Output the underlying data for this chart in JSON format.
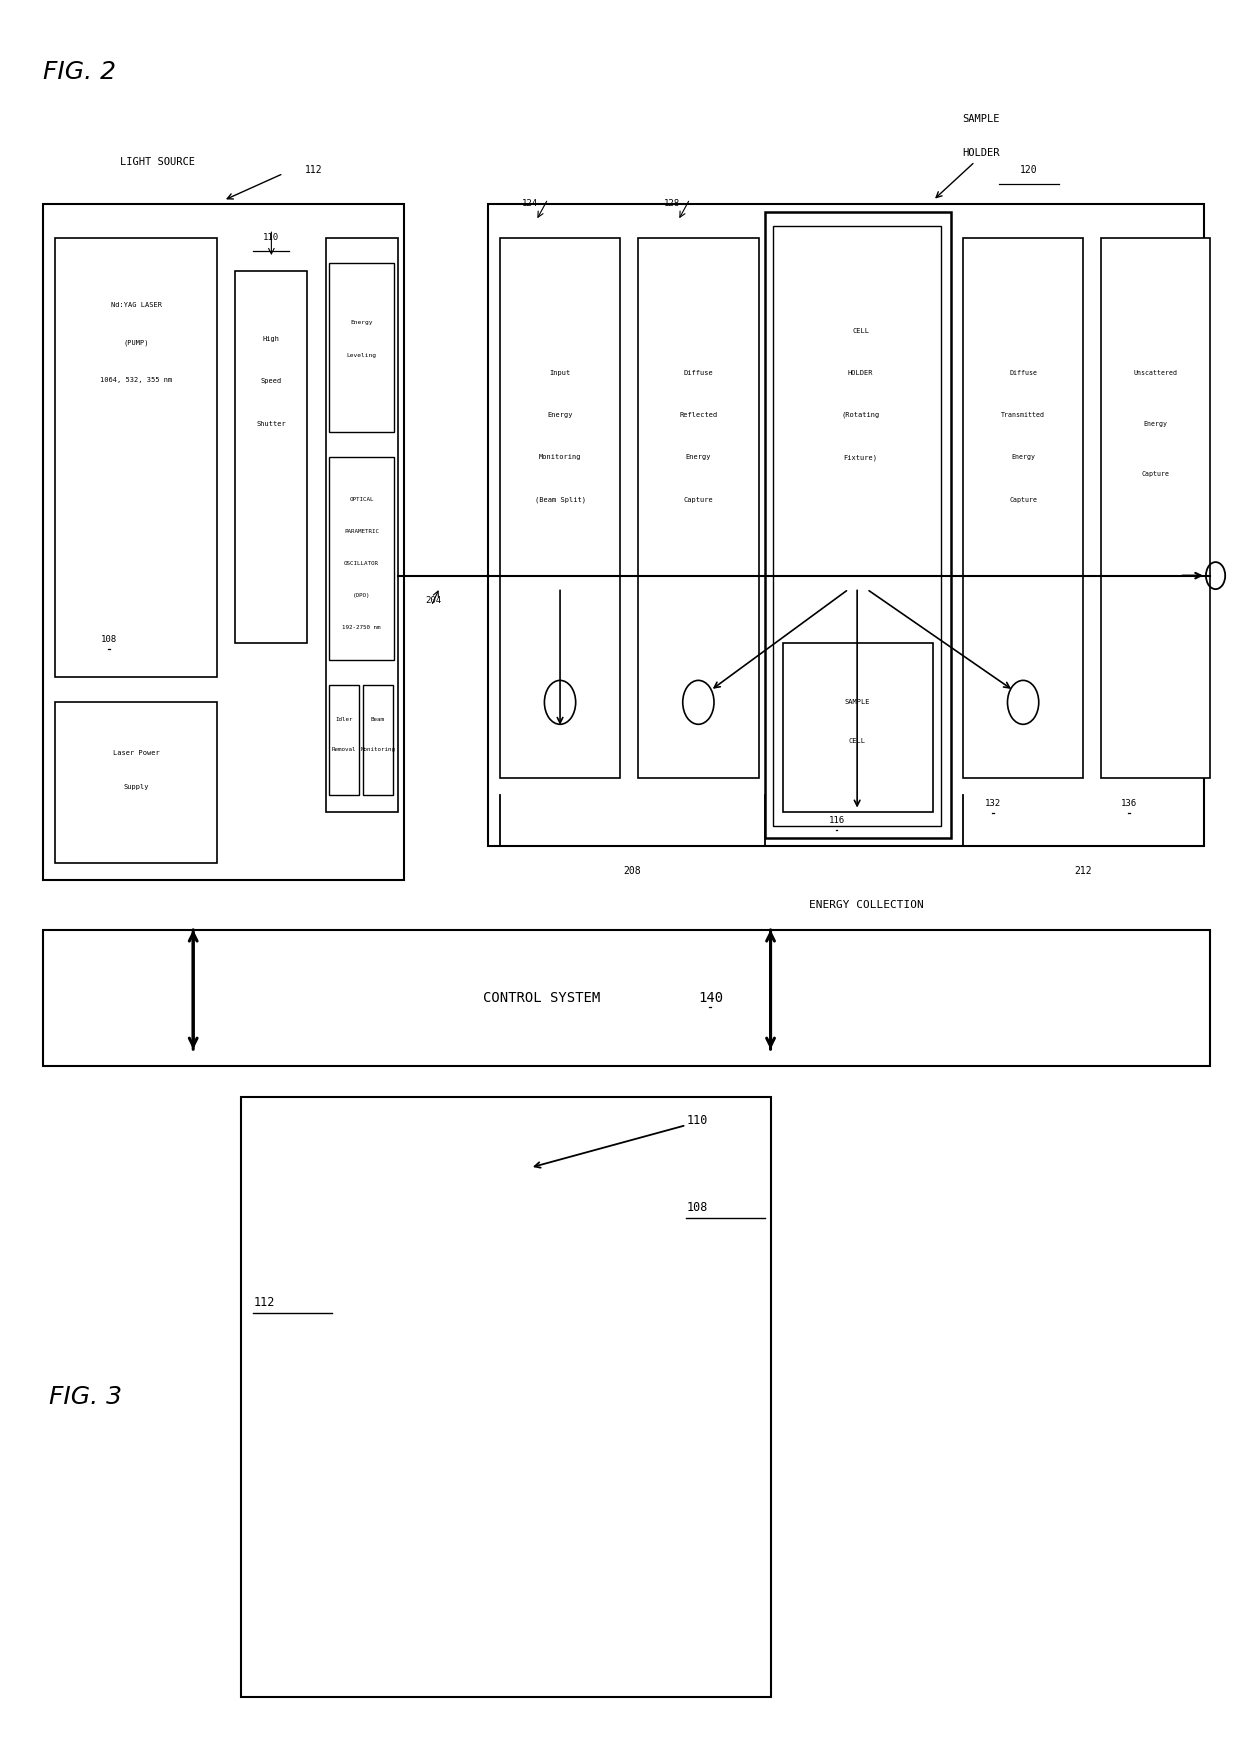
{
  "bg_color": "#ffffff",
  "fig2_title": "FIG. 2",
  "fig3_title": "FIG. 3",
  "light_source_label": "LIGHT SOURCE",
  "light_source_ref": "112",
  "sample_holder_label_1": "SAMPLE",
  "sample_holder_label_2": "HOLDER",
  "sample_holder_ref": "120",
  "control_system_label": "CONTROL SYSTEM",
  "control_system_ref": "140",
  "energy_collection_label": "ENERGY COLLECTION",
  "ref_208": "208",
  "ref_212": "212",
  "ref_204": "204",
  "ref_108": "108",
  "ref_110": "110",
  "ref_112": "112",
  "ref_116": "116",
  "ref_124": "124",
  "ref_128": "128",
  "ref_132": "132",
  "ref_136": "136",
  "ref_140": "140",
  "laser_lines": [
    "Nd:YAG LASER",
    "(PUMP)",
    "1064, 532, 355 nm"
  ],
  "laser_power_lines": [
    "Laser Power",
    "Supply"
  ],
  "shutter_lines": [
    "High",
    "Speed",
    "Shutter"
  ],
  "opo_lines": [
    "OPTICAL",
    "PARAMETRIC",
    "OSCILLATOR",
    "(OPO)",
    "192-2750 nm"
  ],
  "energy_leveling_lines": [
    "Energy",
    "Leveling"
  ],
  "idler_lines": [
    "Idler",
    "Removal"
  ],
  "beam_mon_lines": [
    "Beam",
    "Monitoring"
  ],
  "input_energy_lines": [
    "Input",
    "Energy",
    "Monitoring",
    "(Beam Split)"
  ],
  "diffuse_reflected_lines": [
    "Diffuse",
    "Reflected",
    "Energy",
    "Capture"
  ],
  "cell_holder_lines": [
    "CELL",
    "HOLDER",
    "(Rotating",
    "Fixture)"
  ],
  "sample_cell_lines": [
    "SAMPLE",
    "CELL"
  ],
  "diffuse_transmitted_lines": [
    "Diffuse",
    "Transmitted",
    "Energy",
    "Capture"
  ],
  "unscattered_lines": [
    "Unscattered",
    "Energy",
    "Capture"
  ]
}
